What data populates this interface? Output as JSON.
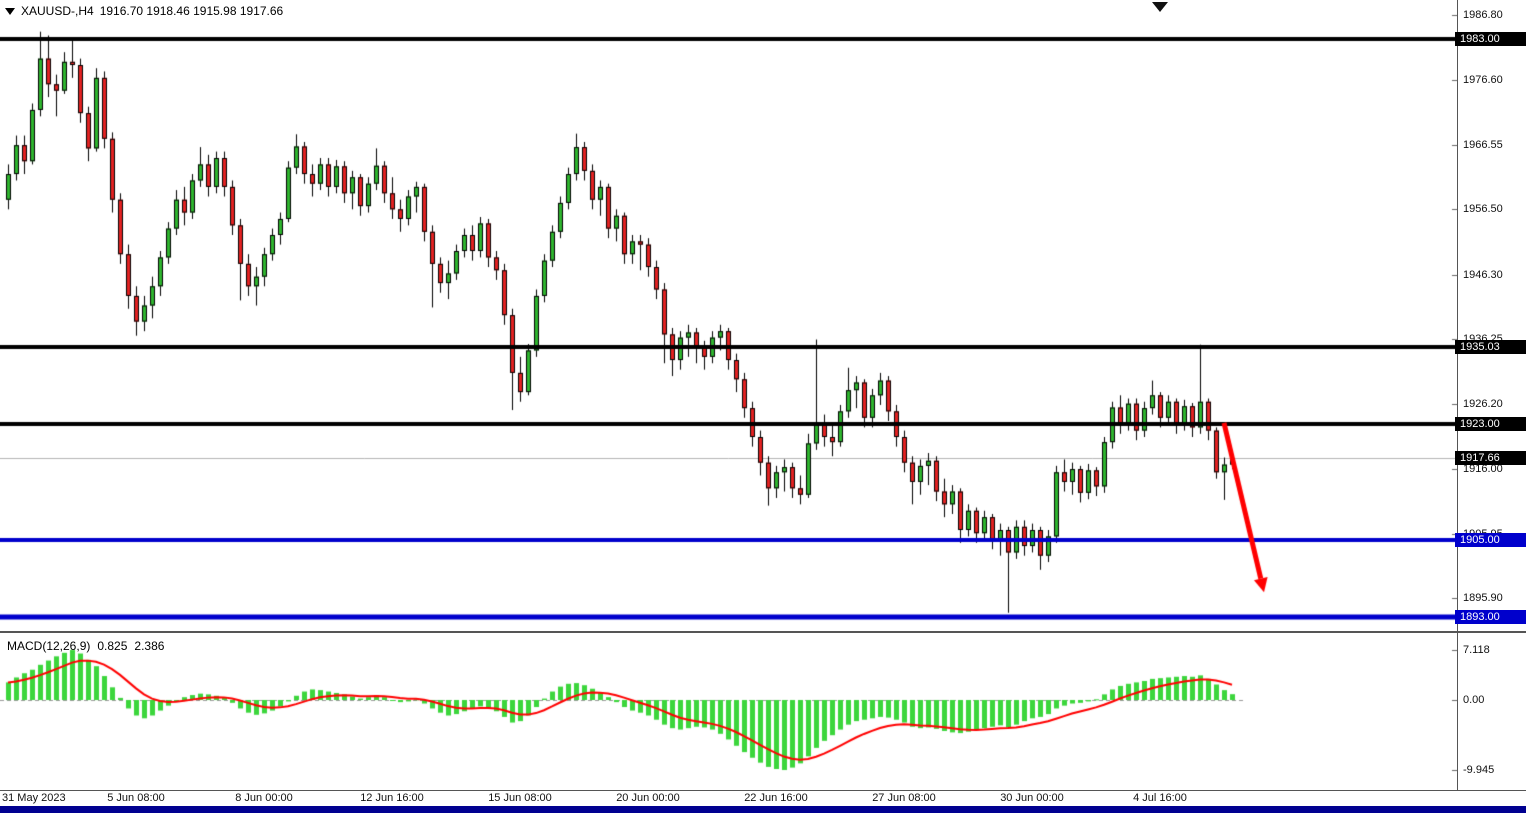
{
  "header": {
    "symbol_timeframe": "XAUUSD-,H4",
    "ohlc": "1916.70 1918.46 1915.98 1917.66"
  },
  "colors": {
    "background": "#ffffff",
    "bull": "#2fb52f",
    "bear": "#e32222",
    "outline": "#000000",
    "level_black": "#000000",
    "level_blue": "#0000cc",
    "hist": "#3cd63c",
    "signal": "#ff0000",
    "arrow": "#ff0000",
    "current_price_line": "#b3b3b3",
    "bottom_bar": "#000090"
  },
  "chart_data": {
    "type": "candlestick",
    "symbol": "XAUUSD-",
    "timeframe": "H4",
    "ohlc_current": {
      "open": "1916.70",
      "high": "1918.46",
      "low": "1915.98",
      "close": "1917.66"
    },
    "grid": false,
    "price_axis_ticks": [
      "1986.80",
      "1976.60",
      "1966.55",
      "1956.50",
      "1946.30",
      "1936.25",
      "1926.20",
      "1916.00",
      "1905.95",
      "1895.90"
    ],
    "levels": [
      {
        "label": "1983.00",
        "value": 1983.0,
        "color": "black",
        "width": 4
      },
      {
        "label": "1935.03",
        "value": 1935.03,
        "color": "black",
        "width": 4
      },
      {
        "label": "1923.00",
        "value": 1923.0,
        "color": "black",
        "width": 4
      },
      {
        "label": "1905.00",
        "value": 1905.0,
        "color": "blue",
        "width": 4
      },
      {
        "label": "1893.00",
        "value": 1893.0,
        "color": "blue",
        "width": 5
      }
    ],
    "current_price": {
      "label": "1917.66",
      "value": 1917.66
    },
    "time_labels": [
      {
        "text": "31 May 2023",
        "bar": 0
      },
      {
        "text": "5 Jun 08:00",
        "bar": 16
      },
      {
        "text": "8 Jun 00:00",
        "bar": 32
      },
      {
        "text": "12 Jun 16:00",
        "bar": 48
      },
      {
        "text": "15 Jun 08:00",
        "bar": 64
      },
      {
        "text": "20 Jun 00:00",
        "bar": 80
      },
      {
        "text": "22 Jun 16:00",
        "bar": 96
      },
      {
        "text": "27 Jun 08:00",
        "bar": 112
      },
      {
        "text": "30 Jun 00:00",
        "bar": 128
      },
      {
        "text": "4 Jul 16:00",
        "bar": 144
      }
    ],
    "candles": [
      [
        1958,
        1963.5,
        1956.5,
        1962
      ],
      [
        1962,
        1968,
        1961,
        1966.5
      ],
      [
        1966.5,
        1968,
        1962,
        1964
      ],
      [
        1964,
        1973,
        1963.5,
        1972
      ],
      [
        1972,
        1984.2,
        1971,
        1980
      ],
      [
        1980,
        1983.6,
        1974,
        1976
      ],
      [
        1976,
        1977.5,
        1971,
        1975
      ],
      [
        1975,
        1981,
        1974.5,
        1979.5
      ],
      [
        1979.5,
        1983,
        1977,
        1979
      ],
      [
        1979,
        1980,
        1970,
        1971.5
      ],
      [
        1971.5,
        1972.5,
        1964,
        1966
      ],
      [
        1966,
        1978.5,
        1965.5,
        1977
      ],
      [
        1977,
        1978,
        1966,
        1967.5
      ],
      [
        1967.5,
        1968.5,
        1956,
        1958
      ],
      [
        1958,
        1959,
        1948,
        1949.5
      ],
      [
        1949.5,
        1951,
        1941,
        1943
      ],
      [
        1943,
        1944.5,
        1936.8,
        1939
      ],
      [
        1939,
        1943,
        1937.5,
        1941.5
      ],
      [
        1941.5,
        1946,
        1939.5,
        1944.5
      ],
      [
        1944.5,
        1950,
        1943,
        1949
      ],
      [
        1949,
        1954.5,
        1948,
        1953.5
      ],
      [
        1953.5,
        1959.5,
        1952.5,
        1958
      ],
      [
        1958,
        1960,
        1954,
        1956
      ],
      [
        1956,
        1962,
        1955,
        1961
      ],
      [
        1961,
        1966.2,
        1960,
        1963.5
      ],
      [
        1963.5,
        1965,
        1958.5,
        1960
      ],
      [
        1960,
        1965.5,
        1959,
        1964.5
      ],
      [
        1964.5,
        1965.5,
        1958.5,
        1960
      ],
      [
        1960,
        1961,
        1952.5,
        1954
      ],
      [
        1954,
        1955,
        1942.3,
        1948
      ],
      [
        1948,
        1949.5,
        1943,
        1944.5
      ],
      [
        1944.5,
        1947.5,
        1941.5,
        1946
      ],
      [
        1946,
        1950.5,
        1944.5,
        1949.5
      ],
      [
        1949.5,
        1953.5,
        1948.5,
        1952.5
      ],
      [
        1952.5,
        1956,
        1951,
        1955
      ],
      [
        1955,
        1964,
        1954.5,
        1963
      ],
      [
        1963,
        1968.2,
        1962,
        1966.3
      ],
      [
        1966.3,
        1967,
        1960.5,
        1962
      ],
      [
        1962,
        1963.5,
        1958.5,
        1960.5
      ],
      [
        1960.5,
        1964.5,
        1959.5,
        1963.5
      ],
      [
        1963.5,
        1964.5,
        1958.5,
        1960
      ],
      [
        1960,
        1964.2,
        1959,
        1963.2
      ],
      [
        1963.2,
        1964,
        1957.5,
        1959
      ],
      [
        1959,
        1962.5,
        1956.5,
        1961.5
      ],
      [
        1961.5,
        1962,
        1955.5,
        1957
      ],
      [
        1957,
        1961.5,
        1956,
        1960.5
      ],
      [
        1960.5,
        1966,
        1959.5,
        1963.3
      ],
      [
        1963.3,
        1964,
        1957.5,
        1959
      ],
      [
        1959,
        1961.5,
        1955,
        1956.5
      ],
      [
        1956.5,
        1958,
        1953,
        1955
      ],
      [
        1955,
        1959.5,
        1954,
        1958.5
      ],
      [
        1958.5,
        1960.8,
        1956,
        1960
      ],
      [
        1960,
        1960.5,
        1951.5,
        1953
      ],
      [
        1953,
        1954,
        1941.2,
        1948
      ],
      [
        1948,
        1949,
        1943.5,
        1945
      ],
      [
        1945,
        1948.5,
        1942.5,
        1946.5
      ],
      [
        1946.5,
        1951,
        1945.5,
        1950
      ],
      [
        1950,
        1953.5,
        1949,
        1952.5
      ],
      [
        1952.5,
        1954,
        1948.5,
        1950
      ],
      [
        1950,
        1955.3,
        1949,
        1954.3
      ],
      [
        1954.3,
        1955,
        1947.5,
        1949
      ],
      [
        1949,
        1950,
        1945.5,
        1947
      ],
      [
        1947,
        1948,
        1938.5,
        1940
      ],
      [
        1940,
        1941,
        1925.2,
        1931
      ],
      [
        1931,
        1933.5,
        1926.5,
        1928
      ],
      [
        1928,
        1935.5,
        1927.5,
        1934.5
      ],
      [
        1934.5,
        1944,
        1933.5,
        1943
      ],
      [
        1943,
        1949.5,
        1942,
        1948.5
      ],
      [
        1948.5,
        1954,
        1947.5,
        1953
      ],
      [
        1953,
        1958.5,
        1952,
        1957.5
      ],
      [
        1957.5,
        1963,
        1956.5,
        1962
      ],
      [
        1962,
        1968.3,
        1961,
        1966.2
      ],
      [
        1966.2,
        1967,
        1961,
        1962.5
      ],
      [
        1962.5,
        1963.5,
        1956.5,
        1958
      ],
      [
        1958,
        1961,
        1955.5,
        1960
      ],
      [
        1960,
        1960.5,
        1952,
        1953.5
      ],
      [
        1953.5,
        1956.5,
        1951.5,
        1955.5
      ],
      [
        1955.5,
        1956,
        1948,
        1949.5
      ],
      [
        1949.5,
        1952.5,
        1948,
        1951.5
      ],
      [
        1951.5,
        1952.5,
        1947,
        1951
      ],
      [
        1951,
        1952,
        1946,
        1947.5
      ],
      [
        1947.5,
        1948.5,
        1942.5,
        1944
      ],
      [
        1944,
        1945,
        1932.5,
        1937
      ],
      [
        1937,
        1938,
        1930.5,
        1933
      ],
      [
        1933,
        1937.5,
        1931.5,
        1936.5
      ],
      [
        1936.5,
        1938.5,
        1933.5,
        1937.3
      ],
      [
        1937.3,
        1938,
        1932.5,
        1935
      ],
      [
        1935,
        1936,
        1931.5,
        1933.5
      ],
      [
        1933.5,
        1937.5,
        1932.5,
        1936.5
      ],
      [
        1936.5,
        1938.5,
        1934.5,
        1937.5
      ],
      [
        1937.5,
        1938,
        1931.5,
        1933
      ],
      [
        1933,
        1934,
        1928,
        1930
      ],
      [
        1930,
        1931,
        1924,
        1925.5
      ],
      [
        1925.5,
        1926.5,
        1919.5,
        1921
      ],
      [
        1921,
        1922,
        1915,
        1917
      ],
      [
        1917,
        1918,
        1910.3,
        1913
      ],
      [
        1913,
        1916.5,
        1911.5,
        1915.5
      ],
      [
        1915.5,
        1917.5,
        1912.5,
        1916.3
      ],
      [
        1916.3,
        1917,
        1911.5,
        1913
      ],
      [
        1913,
        1915,
        1910.5,
        1912
      ],
      [
        1912,
        1921.5,
        1911.5,
        1920
      ],
      [
        1920,
        1936.2,
        1919,
        1923
      ],
      [
        1923,
        1924.5,
        1919.5,
        1921
      ],
      [
        1921,
        1923,
        1918,
        1920.2
      ],
      [
        1920.2,
        1926,
        1919.5,
        1925
      ],
      [
        1925,
        1931.8,
        1924,
        1928.3
      ],
      [
        1928.3,
        1930.5,
        1925.5,
        1929.5
      ],
      [
        1929.5,
        1930,
        1922.5,
        1924
      ],
      [
        1924,
        1928.5,
        1922.5,
        1927.5
      ],
      [
        1927.5,
        1931,
        1926,
        1929.8
      ],
      [
        1929.8,
        1930.5,
        1923.5,
        1925
      ],
      [
        1925,
        1926,
        1919.5,
        1921
      ],
      [
        1921,
        1922,
        1915.5,
        1917
      ],
      [
        1917,
        1918,
        1910.5,
        1914
      ],
      [
        1914,
        1917.5,
        1912,
        1916.5
      ],
      [
        1916.5,
        1918.5,
        1913.5,
        1917.3
      ],
      [
        1917.3,
        1918,
        1911,
        1912.5
      ],
      [
        1912.5,
        1914.5,
        1908.5,
        1910.5
      ],
      [
        1910.5,
        1913.5,
        1909,
        1912.5
      ],
      [
        1912.5,
        1913,
        1904.5,
        1906.5
      ],
      [
        1906.5,
        1910.5,
        1905.5,
        1909.5
      ],
      [
        1909.5,
        1910,
        1904.5,
        1906
      ],
      [
        1906,
        1909.5,
        1905,
        1908.5
      ],
      [
        1908.5,
        1909,
        1903.5,
        1905
      ],
      [
        1905,
        1907.5,
        1902.5,
        1906.5
      ],
      [
        1906.5,
        1907,
        1893.6,
        1903
      ],
      [
        1903,
        1908,
        1902,
        1907
      ],
      [
        1907,
        1908,
        1902.5,
        1904
      ],
      [
        1904,
        1907.5,
        1903,
        1906.5
      ],
      [
        1906.5,
        1907,
        1900.3,
        1902.5
      ],
      [
        1902.5,
        1906.5,
        1901.5,
        1905.5
      ],
      [
        1905.5,
        1916.5,
        1904.5,
        1915.5
      ],
      [
        1915.5,
        1917.5,
        1912.5,
        1914
      ],
      [
        1914,
        1917,
        1912,
        1916
      ],
      [
        1916,
        1916.5,
        1910.8,
        1912.3
      ],
      [
        1912.3,
        1916.8,
        1911.3,
        1915.8
      ],
      [
        1915.8,
        1916.3,
        1911.8,
        1913.3
      ],
      [
        1913.3,
        1921,
        1912.3,
        1920.2
      ],
      [
        1920.2,
        1926.5,
        1919.2,
        1925.6
      ],
      [
        1925.6,
        1927.5,
        1921.5,
        1923
      ],
      [
        1923,
        1927,
        1922,
        1926.2
      ],
      [
        1926.2,
        1927,
        1920.5,
        1922
      ],
      [
        1922,
        1926.5,
        1921,
        1925.5
      ],
      [
        1925.5,
        1929.8,
        1924.5,
        1927.5
      ],
      [
        1927.5,
        1928,
        1922.5,
        1924
      ],
      [
        1924,
        1927.5,
        1923,
        1926.5
      ],
      [
        1926.5,
        1927,
        1921.5,
        1923
      ],
      [
        1923,
        1926.8,
        1922,
        1925.8
      ],
      [
        1925.8,
        1926.3,
        1921,
        1922.5
      ],
      [
        1922.5,
        1935.4,
        1921.5,
        1926.5
      ],
      [
        1926.5,
        1927,
        1920.5,
        1922
      ],
      [
        1922,
        1922.5,
        1914.5,
        1915.5
      ],
      [
        1915.5,
        1917.8,
        1911.2,
        1916.7
      ],
      [
        1916.7,
        1918.46,
        1915.98,
        1917.66
      ]
    ],
    "macd": {
      "label": "MACD(12,26,9)",
      "main_value": "0.825",
      "signal_value": "2.386",
      "signal_period": 9,
      "axis_ticks": [
        "7.118",
        "0.00",
        "-9.945"
      ],
      "histogram": [
        2.5,
        3.2,
        3.8,
        4.3,
        5.0,
        5.6,
        6.2,
        6.7,
        7.118,
        6.6,
        5.7,
        4.8,
        3.4,
        1.8,
        0.3,
        -1.2,
        -2.2,
        -2.6,
        -2.2,
        -1.5,
        -0.8,
        -0.1,
        0.4,
        0.7,
        0.9,
        0.8,
        0.6,
        0.3,
        -0.4,
        -1.2,
        -1.8,
        -2.1,
        -1.9,
        -1.5,
        -0.9,
        -0.2,
        0.6,
        1.2,
        1.5,
        1.4,
        1.2,
        1.0,
        0.8,
        0.5,
        0.2,
        0.4,
        0.7,
        0.4,
        0.0,
        -0.3,
        -0.2,
        0.1,
        -0.5,
        -1.2,
        -1.8,
        -2.2,
        -2.0,
        -1.6,
        -1.2,
        -0.9,
        -1.1,
        -1.6,
        -2.4,
        -3.2,
        -3.0,
        -2.2,
        -1.0,
        0.2,
        1.2,
        1.9,
        2.3,
        2.4,
        2.1,
        1.6,
        1.0,
        0.4,
        -0.3,
        -1.0,
        -1.5,
        -1.8,
        -2.2,
        -2.8,
        -3.5,
        -4.0,
        -4.2,
        -4.0,
        -3.8,
        -3.9,
        -4.2,
        -4.8,
        -5.6,
        -6.5,
        -7.4,
        -8.2,
        -8.9,
        -9.5,
        -9.8,
        -9.945,
        -9.6,
        -9.0,
        -8.0,
        -6.8,
        -5.8,
        -5.0,
        -4.2,
        -3.5,
        -3.0,
        -2.8,
        -2.6,
        -2.4,
        -2.5,
        -2.8,
        -3.2,
        -3.8,
        -4.0,
        -3.9,
        -4.1,
        -4.4,
        -4.6,
        -4.7,
        -4.5,
        -4.3,
        -4.0,
        -3.8,
        -3.6,
        -3.9,
        -3.5,
        -3.0,
        -2.6,
        -2.4,
        -2.0,
        -1.2,
        -0.8,
        -0.5,
        -0.4,
        -0.2,
        0.1,
        0.8,
        1.5,
        2.0,
        2.3,
        2.5,
        2.7,
        3.0,
        3.1,
        3.2,
        3.3,
        3.4,
        3.3,
        3.5,
        3.0,
        2.2,
        1.4,
        0.825
      ]
    },
    "arrow": {
      "from_bar": 152,
      "from_price": 1923.2,
      "to_bar": 157,
      "to_price": 1896.8,
      "color": "#ff0000"
    }
  }
}
